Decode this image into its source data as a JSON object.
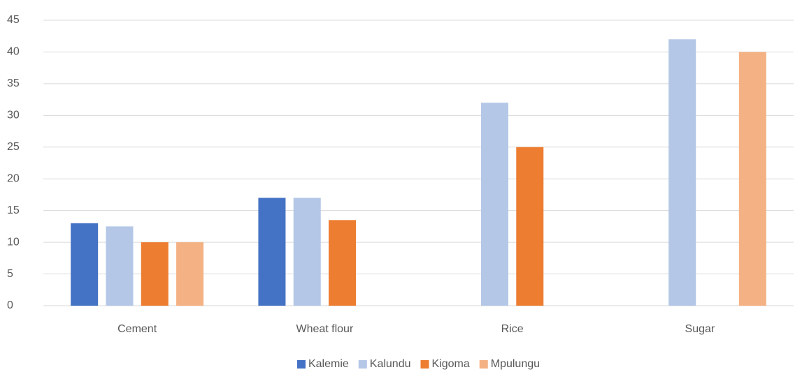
{
  "chart_data": {
    "type": "bar",
    "categories": [
      "Cement",
      "Wheat flour",
      "Rice",
      "Sugar"
    ],
    "series": [
      {
        "name": "Kalemie",
        "color": "#4472c4",
        "values": [
          13,
          17,
          null,
          null
        ]
      },
      {
        "name": "Kalundu",
        "color": "#b4c7e7",
        "values": [
          12.5,
          17,
          32,
          42
        ]
      },
      {
        "name": "Kigoma",
        "color": "#ed7d31",
        "values": [
          10,
          13.5,
          25,
          null
        ]
      },
      {
        "name": "Mpulungu",
        "color": "#f4b183",
        "values": [
          10,
          null,
          null,
          40
        ]
      }
    ],
    "ylim": [
      0,
      45
    ],
    "yticks": [
      0,
      5,
      10,
      15,
      20,
      25,
      30,
      35,
      40,
      45
    ],
    "grid": true,
    "legend": "bottom"
  }
}
